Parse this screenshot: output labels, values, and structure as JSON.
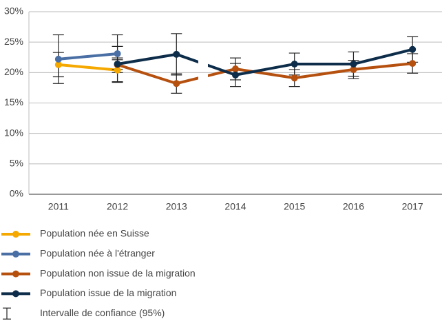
{
  "chart_data": {
    "type": "line",
    "categories": [
      "2011",
      "2012",
      "2013",
      "2014",
      "2015",
      "2016",
      "2017"
    ],
    "series": [
      {
        "name": "Population née en Suisse",
        "color": "#f5a800",
        "values": [
          21.3,
          20.4,
          null,
          null,
          null,
          null,
          null
        ],
        "errors": [
          2.0,
          2.0,
          null,
          null,
          null,
          null,
          null
        ]
      },
      {
        "name": "Population née à l'étranger",
        "color": "#4a6fa5",
        "values": [
          22.2,
          23.1,
          null,
          null,
          null,
          null,
          null
        ],
        "errors": [
          4.0,
          3.1,
          null,
          null,
          null,
          null,
          null
        ]
      },
      {
        "name": "Population non issue de la migration",
        "color": "#b5500f",
        "values": [
          null,
          21.3,
          18.2,
          20.6,
          19.1,
          20.5,
          21.5
        ],
        "errors": [
          null,
          0.8,
          1.6,
          1.8,
          1.4,
          1.5,
          1.6
        ]
      },
      {
        "name": "Population issue de la migration",
        "color": "#0d2d4a",
        "values": [
          null,
          21.4,
          23.0,
          19.6,
          21.4,
          21.4,
          23.8
        ],
        "errors": [
          null,
          2.9,
          3.4,
          1.9,
          1.8,
          2.0,
          2.1
        ]
      }
    ],
    "error_label": "Intervalle de confiance (95%)",
    "ylim": [
      0,
      30
    ],
    "yticks": [
      {
        "value": 0,
        "label": "0%"
      },
      {
        "value": 5,
        "label": "5%"
      },
      {
        "value": 10,
        "label": "10%"
      },
      {
        "value": 15,
        "label": "15%"
      },
      {
        "value": 20,
        "label": "20%"
      },
      {
        "value": 25,
        "label": "25%"
      },
      {
        "value": 30,
        "label": "30%"
      }
    ],
    "grid": true
  }
}
